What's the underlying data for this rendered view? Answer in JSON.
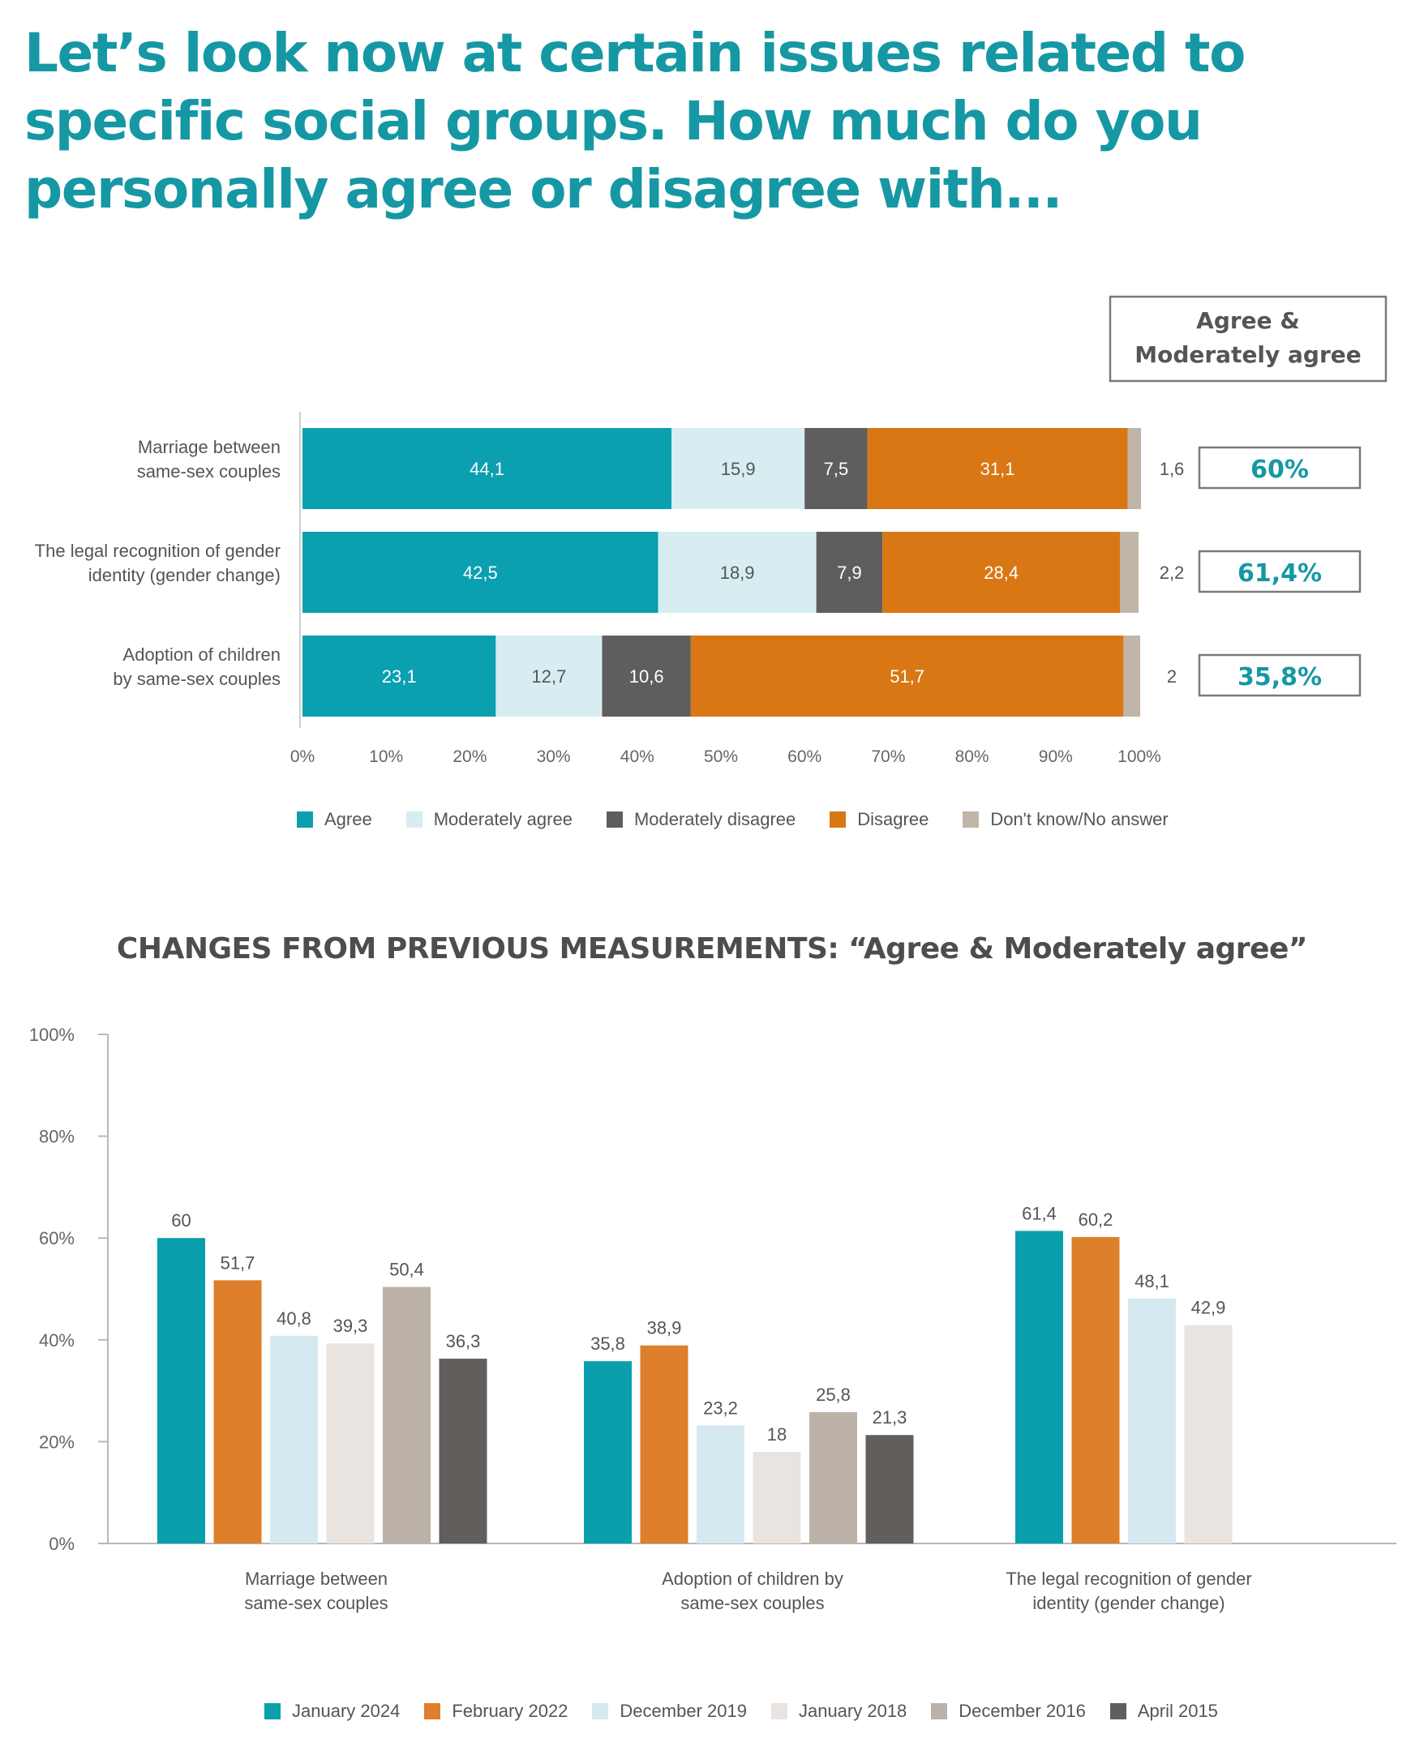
{
  "title": "Let’s look now at certain issues related to specific social groups. How much do you personally agree or disagree with...",
  "subtitle": "CHANGES FROM PREVIOUS MEASUREMENTS: “Agree & Moderately agree”",
  "colors": {
    "agree": "#0aa0af",
    "moderately_agree": "#d7edf2",
    "moderately_disagree": "#5e5e5e",
    "disagree": "#d97714",
    "dont_know": "#c1b5a7",
    "january_2024": "#0a9fad",
    "february_2022": "#dd7f2b",
    "december_2019": "#d5eaf0",
    "january_2018": "#eae4e1",
    "december_2016": "#bcb2a8",
    "april_2015": "#625e5c",
    "summary_text": "#1598a4"
  },
  "chart_data": [
    {
      "type": "bar",
      "orientation": "horizontal",
      "stacked": true,
      "categories": [
        [
          "Marriage between",
          "same-sex couples"
        ],
        [
          "The legal recognition of gender",
          "identity (gender change)"
        ],
        [
          "Adoption of children",
          "by same-sex couples"
        ]
      ],
      "series": [
        {
          "name": "Agree",
          "values": [
            44.1,
            42.5,
            23.1
          ],
          "labels": [
            "44,1",
            "42,5",
            "23,1"
          ]
        },
        {
          "name": "Moderately agree",
          "values": [
            15.9,
            18.9,
            12.7
          ],
          "labels": [
            "15,9",
            "18,9",
            "12,7"
          ]
        },
        {
          "name": "Moderately disagree",
          "values": [
            7.5,
            7.9,
            10.6
          ],
          "labels": [
            "7,5",
            "7,9",
            "10,6"
          ]
        },
        {
          "name": "Disagree",
          "values": [
            31.1,
            28.4,
            51.7
          ],
          "labels": [
            "31,1",
            "28,4",
            "51,7"
          ]
        },
        {
          "name": "Don't know/No answer",
          "values": [
            1.6,
            2.2,
            2
          ],
          "labels": [
            "1,6",
            "2,2",
            "2"
          ]
        }
      ],
      "xlim": [
        0,
        100
      ],
      "x_ticks": [
        "0%",
        "10%",
        "20%",
        "30%",
        "40%",
        "50%",
        "60%",
        "70%",
        "80%",
        "90%",
        "100%"
      ],
      "summary_header": [
        "Agree &",
        "Moderately agree"
      ],
      "summary": [
        "60%",
        "61,4%",
        "35,8%"
      ],
      "legend_position": "bottom"
    },
    {
      "type": "bar",
      "orientation": "vertical",
      "categories": [
        [
          "Marriage between",
          "same-sex couples"
        ],
        [
          "Adoption of children by",
          "same-sex couples"
        ],
        [
          "The legal recognition of gender",
          "identity (gender change)"
        ]
      ],
      "series": [
        {
          "name": "January 2024",
          "values": [
            60,
            35.8,
            61.4
          ],
          "labels": [
            "60",
            "35,8",
            "61,4"
          ]
        },
        {
          "name": "February 2022",
          "values": [
            51.7,
            38.9,
            60.2
          ],
          "labels": [
            "51,7",
            "38,9",
            "60,2"
          ]
        },
        {
          "name": "December 2019",
          "values": [
            40.8,
            23.2,
            48.1
          ],
          "labels": [
            "40,8",
            "23,2",
            "48,1"
          ]
        },
        {
          "name": "January 2018",
          "values": [
            39.3,
            18,
            42.9
          ],
          "labels": [
            "39,3",
            "18",
            "42,9"
          ]
        },
        {
          "name": "December 2016",
          "values": [
            50.4,
            25.8,
            null
          ],
          "labels": [
            "50,4",
            "25,8",
            ""
          ]
        },
        {
          "name": "April 2015",
          "values": [
            36.3,
            21.3,
            null
          ],
          "labels": [
            "36,3",
            "21,3",
            ""
          ]
        }
      ],
      "ylim": [
        0,
        100
      ],
      "y_ticks": [
        "0%",
        "20%",
        "40%",
        "60%",
        "80%",
        "100%"
      ],
      "legend_position": "bottom"
    }
  ]
}
